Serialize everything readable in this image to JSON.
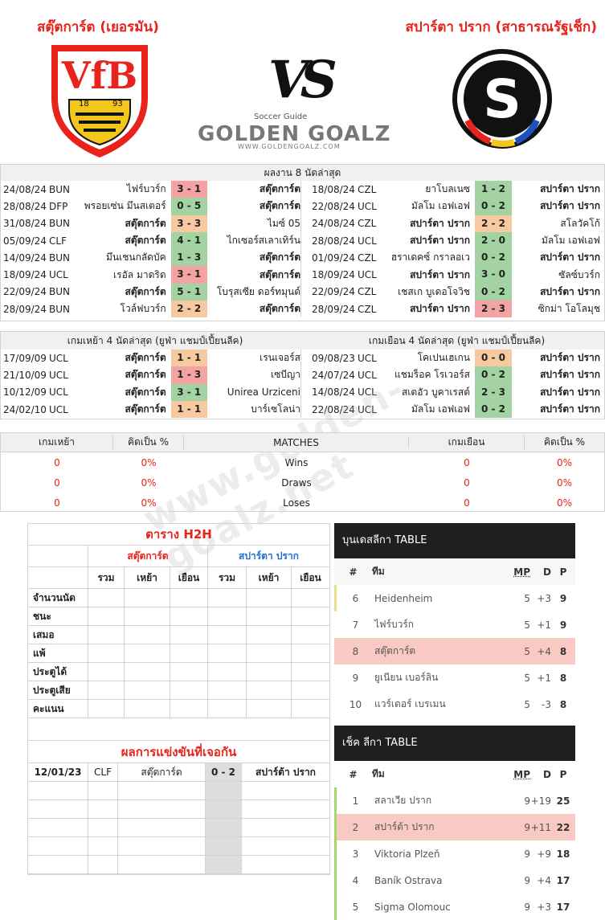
{
  "header": {
    "home_team": "สตุ๊ตการ์ต (เยอรมัน)",
    "away_team": "สปาร์ตา ปราก (สาธารณรัฐเช็ก)",
    "vs_label": "VS",
    "home_logo_top": "VfB",
    "home_logo_year_left": "18",
    "home_logo_year_right": "93",
    "away_logo_letter": "S",
    "brand_small": "Soccer Guide",
    "brand_big": "GOLDEN GOALZ",
    "brand_url": "WWW.GOLDENGOALZ.COM",
    "watermark": "www.golden-goalz.net"
  },
  "recent8": {
    "title": "ผลงาน 8 นัดล่าสุด",
    "home": [
      {
        "date": "24/08/24",
        "lg": "BUN",
        "left": "ไฟร์บวร์ก",
        "score": "3 - 1",
        "right": "สตุ๊ตการ์ต",
        "res": "red",
        "bold": "right"
      },
      {
        "date": "28/08/24",
        "lg": "DFP",
        "left": "พรอยเซ่น มึนสเตอร์",
        "score": "0 - 5",
        "right": "สตุ๊ตการ์ต",
        "res": "green",
        "bold": "right"
      },
      {
        "date": "31/08/24",
        "lg": "BUN",
        "left": "สตุ๊ตการ์ต",
        "score": "3 - 3",
        "right": "ไมซ์ 05",
        "res": "orange",
        "bold": "left"
      },
      {
        "date": "05/09/24",
        "lg": "CLF",
        "left": "สตุ๊ตการ์ต",
        "score": "4 - 1",
        "right": "ไกเซอร์สเลาเทิร์น",
        "res": "green",
        "bold": "left"
      },
      {
        "date": "14/09/24",
        "lg": "BUN",
        "left": "มึนเชนกลัดบัค",
        "score": "1 - 3",
        "right": "สตุ๊ตการ์ต",
        "res": "green",
        "bold": "right"
      },
      {
        "date": "18/09/24",
        "lg": "UCL",
        "left": "เรอัล มาดริด",
        "score": "3 - 1",
        "right": "สตุ๊ตการ์ต",
        "res": "red",
        "bold": "right"
      },
      {
        "date": "22/09/24",
        "lg": "BUN",
        "left": "สตุ๊ตการ์ต",
        "score": "5 - 1",
        "right": "โบรุสเซีย ดอร์ทมุนด์",
        "res": "green",
        "bold": "left"
      },
      {
        "date": "28/09/24",
        "lg": "BUN",
        "left": "โวล์ฟบวร์ก",
        "score": "2 - 2",
        "right": "สตุ๊ตการ์ต",
        "res": "orange",
        "bold": "right"
      }
    ],
    "away": [
      {
        "date": "18/08/24",
        "lg": "CZL",
        "left": "ยาโบลเนซ",
        "score": "1 - 2",
        "right": "สปาร์ตา ปราก",
        "res": "green",
        "bold": "right"
      },
      {
        "date": "22/08/24",
        "lg": "UCL",
        "left": "มัลโม เอฟเอฟ",
        "score": "0 - 2",
        "right": "สปาร์ตา ปราก",
        "res": "green",
        "bold": "right"
      },
      {
        "date": "24/08/24",
        "lg": "CZL",
        "left": "สปาร์ตา ปราก",
        "score": "2 - 2",
        "right": "สโลวัคโก้",
        "res": "orange",
        "bold": "left"
      },
      {
        "date": "28/08/24",
        "lg": "UCL",
        "left": "สปาร์ตา ปราก",
        "score": "2 - 0",
        "right": "มัลโม เอฟเอฟ",
        "res": "green",
        "bold": "left"
      },
      {
        "date": "01/09/24",
        "lg": "CZL",
        "left": "ฮราเดคซ์ กราลอเว",
        "score": "0 - 2",
        "right": "สปาร์ตา ปราก",
        "res": "green",
        "bold": "right"
      },
      {
        "date": "18/09/24",
        "lg": "UCL",
        "left": "สปาร์ตา ปราก",
        "score": "3 - 0",
        "right": "ซัลซ์บวร์ก",
        "res": "green",
        "bold": "left"
      },
      {
        "date": "22/09/24",
        "lg": "CZL",
        "left": "เชสเก บูเดอโจวิช",
        "score": "0 - 2",
        "right": "สปาร์ตา ปราก",
        "res": "green",
        "bold": "right"
      },
      {
        "date": "28/09/24",
        "lg": "CZL",
        "left": "สปาร์ตา ปราก",
        "score": "2 - 3",
        "right": "ซิกม่า โอโลมุช",
        "res": "red",
        "bold": "left"
      }
    ]
  },
  "ucl4": {
    "home_title": "เกมเหย้า 4 นัดล่าสุด (ยูฟ่า แชมป์เปี้ยนลีค)",
    "away_title": "เกมเยือน 4 นัดล่าสุด (ยูฟ่า แชมป์เปี้ยนลีค)",
    "home": [
      {
        "date": "17/09/09",
        "lg": "UCL",
        "left": "สตุ๊ตการ์ต",
        "score": "1 - 1",
        "right": "เรนเจอร์ส",
        "res": "orange",
        "bold": "left"
      },
      {
        "date": "21/10/09",
        "lg": "UCL",
        "left": "สตุ๊ตการ์ต",
        "score": "1 - 3",
        "right": "เซบีญา",
        "res": "red",
        "bold": "left"
      },
      {
        "date": "10/12/09",
        "lg": "UCL",
        "left": "สตุ๊ตการ์ต",
        "score": "3 - 1",
        "right": "Unirea Urziceni",
        "res": "green",
        "bold": "left"
      },
      {
        "date": "24/02/10",
        "lg": "UCL",
        "left": "สตุ๊ตการ์ต",
        "score": "1 - 1",
        "right": "บาร์เซโลน่า",
        "res": "orange",
        "bold": "left"
      }
    ],
    "away": [
      {
        "date": "09/08/23",
        "lg": "UCL",
        "left": "โคเปนเฮเกน",
        "score": "0 - 0",
        "right": "สปาร์ตา ปราก",
        "res": "orange",
        "bold": "right"
      },
      {
        "date": "24/07/24",
        "lg": "UCL",
        "left": "แชมร็อค โรเวอร์ส",
        "score": "0 - 2",
        "right": "สปาร์ตา ปราก",
        "res": "green",
        "bold": "right"
      },
      {
        "date": "14/08/24",
        "lg": "UCL",
        "left": "สเตอัว บูคาเรสต์",
        "score": "2 - 3",
        "right": "สปาร์ตา ปราก",
        "res": "green",
        "bold": "right"
      },
      {
        "date": "22/08/24",
        "lg": "UCL",
        "left": "มัลโม เอฟเอฟ",
        "score": "0 - 2",
        "right": "สปาร์ตา ปราก",
        "res": "green",
        "bold": "right"
      }
    ]
  },
  "summary": {
    "headers": [
      "เกมเหย้า",
      "คิดเป็น %",
      "MATCHES",
      "เกมเยือน",
      "คิดเป็น %"
    ],
    "rows": [
      {
        "hv": "0",
        "hp": "0%",
        "label": "Wins",
        "av": "0",
        "ap": "0%"
      },
      {
        "hv": "0",
        "hp": "0%",
        "label": "Draws",
        "av": "0",
        "ap": "0%"
      },
      {
        "hv": "0",
        "hp": "0%",
        "label": "Loses",
        "av": "0",
        "ap": "0%"
      }
    ]
  },
  "h2h": {
    "title": "ตาราง H2H",
    "home_label": "สตุ๊ตการ์ต",
    "away_label": "สปาร์ตา ปราก",
    "subcols": [
      "รวม",
      "เหย้า",
      "เยือน",
      "รวม",
      "เหย้า",
      "เยือน"
    ],
    "rows": [
      "จำนวนนัด",
      "ชนะ",
      "เสมอ",
      "แพ้",
      "ประตูได้",
      "ประตูเสีย",
      "คะแนน"
    ],
    "results_title": "ผลการแข่งขันที่เจอกัน",
    "match": {
      "date": "12/01/23",
      "lg": "CLF",
      "home": "สตุ๊ตการ์ต",
      "score": "0 - 2",
      "away": "สปาร์ต้า ปราก"
    }
  },
  "bundesliga": {
    "title": "บุนเดสลีกา TABLE",
    "cols": {
      "num": "#",
      "team": "ทีม",
      "mp": "MP",
      "d": "D",
      "p": "P"
    },
    "rows": [
      {
        "pos": "6",
        "team": "Heidenheim",
        "mp": "5",
        "d": "+3",
        "p": "9",
        "hl": false,
        "edge": "y"
      },
      {
        "pos": "7",
        "team": "ไฟร์บวร์ก",
        "mp": "5",
        "d": "+1",
        "p": "9",
        "hl": false,
        "edge": ""
      },
      {
        "pos": "8",
        "team": "สตุ๊ตการ์ต",
        "mp": "5",
        "d": "+4",
        "p": "8",
        "hl": true,
        "edge": ""
      },
      {
        "pos": "9",
        "team": "ยูเนียน เบอร์ลิน",
        "mp": "5",
        "d": "+1",
        "p": "8",
        "hl": false,
        "edge": ""
      },
      {
        "pos": "10",
        "team": "แวร์เดอร์ เบรเมน",
        "mp": "5",
        "d": "-3",
        "p": "8",
        "hl": false,
        "edge": ""
      }
    ]
  },
  "czech": {
    "title": "เช็ค ลีกา TABLE",
    "cols": {
      "num": "#",
      "team": "ทีม",
      "mp": "MP",
      "d": "D",
      "p": "P"
    },
    "rows": [
      {
        "pos": "1",
        "team": "สลาเวีย ปราก",
        "mp": "9",
        "d": "+19",
        "p": "25",
        "hl": false,
        "edge": "g"
      },
      {
        "pos": "2",
        "team": "สปาร์ต้า ปราก",
        "mp": "9",
        "d": "+11",
        "p": "22",
        "hl": true,
        "edge": "g"
      },
      {
        "pos": "3",
        "team": "Viktoria Plzeň",
        "mp": "9",
        "d": "+9",
        "p": "18",
        "hl": false,
        "edge": "g"
      },
      {
        "pos": "4",
        "team": "Baník Ostrava",
        "mp": "9",
        "d": "+4",
        "p": "17",
        "hl": false,
        "edge": "g"
      },
      {
        "pos": "5",
        "team": "Sigma Olomouc",
        "mp": "9",
        "d": "+3",
        "p": "17",
        "hl": false,
        "edge": "g"
      }
    ]
  }
}
